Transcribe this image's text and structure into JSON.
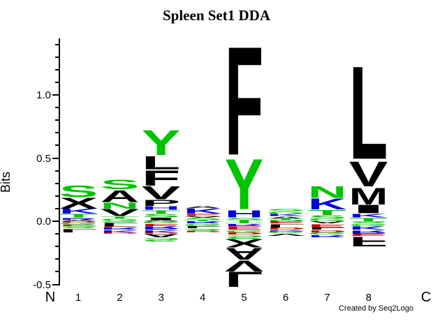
{
  "title": "Spleen Set1 DDA",
  "credit": "Created by Seq2Logo",
  "y_axis": {
    "label": "Bits",
    "ticks": [
      {
        "label": "1.0",
        "bits": 1.0
      },
      {
        "label": "0.5",
        "bits": 0.5
      },
      {
        "label": "0.0",
        "bits": 0.0
      },
      {
        "label": "-0.5",
        "bits": -0.5
      }
    ]
  },
  "x_axis": {
    "left_label": "N",
    "right_label": "C",
    "position_labels": [
      "1",
      "2",
      "3",
      "4",
      "5",
      "6",
      "7",
      "8"
    ]
  },
  "palette": {
    "black": "#000000",
    "green": "#00C400",
    "blue": "#0000DD",
    "red": "#CC0000"
  },
  "chart_data": {
    "type": "sequence_logo",
    "title": "Spleen Set1 DDA",
    "ylabel": "Bits",
    "xlabel_left": "N",
    "xlabel_right": "C",
    "ylim": [
      -0.55,
      1.45
    ],
    "yticks": [
      1.0,
      0.5,
      0.0,
      -0.5
    ],
    "ytick_minor_step": 0.1,
    "grid": false,
    "units": "bits",
    "color_scheme": {
      "black": "hydrophobic",
      "green": "polar",
      "blue": "basic",
      "red": "acidic"
    },
    "positions": [
      {
        "position": 1,
        "above": [
          {
            "aa": "S",
            "color": "green",
            "bits": 0.1
          },
          {
            "aa": "X",
            "color": "black",
            "bits": 0.09
          },
          {
            "aa": "K",
            "color": "blue",
            "bits": 0.04
          },
          {
            "aa": "T",
            "color": "green",
            "bits": 0.03
          },
          {
            "aa": "R",
            "color": "blue",
            "bits": 0.02
          },
          {
            "aa": "A",
            "color": "black",
            "bits": 0.01
          }
        ],
        "below": [
          {
            "aa": "D",
            "color": "red",
            "bits": 0.01
          },
          {
            "aa": "G",
            "color": "green",
            "bits": 0.02
          },
          {
            "aa": "E",
            "color": "red",
            "bits": 0.01
          },
          {
            "aa": "S",
            "color": "green",
            "bits": 0.02
          },
          {
            "aa": "L",
            "color": "black",
            "bits": 0.03
          }
        ]
      },
      {
        "position": 2,
        "above": [
          {
            "aa": "S",
            "color": "green",
            "bits": 0.08
          },
          {
            "aa": "A",
            "color": "black",
            "bits": 0.1
          },
          {
            "aa": "N",
            "color": "green",
            "bits": 0.05
          },
          {
            "aa": "V",
            "color": "black",
            "bits": 0.06
          },
          {
            "aa": "T",
            "color": "green",
            "bits": 0.02
          },
          {
            "aa": "G",
            "color": "green",
            "bits": 0.02
          }
        ],
        "below": [
          {
            "aa": "G",
            "color": "green",
            "bits": 0.01
          },
          {
            "aa": "L",
            "color": "black",
            "bits": 0.03
          },
          {
            "aa": "E",
            "color": "red",
            "bits": 0.01
          },
          {
            "aa": "R",
            "color": "blue",
            "bits": 0.02
          },
          {
            "aa": "K",
            "color": "blue",
            "bits": 0.02
          },
          {
            "aa": "D",
            "color": "red",
            "bits": 0.01
          }
        ]
      },
      {
        "position": 3,
        "above": [
          {
            "aa": "Y",
            "color": "green",
            "bits": 0.21
          },
          {
            "aa": "L",
            "color": "black",
            "bits": 0.11
          },
          {
            "aa": "F",
            "color": "black",
            "bits": 0.13
          },
          {
            "aa": "V",
            "color": "black",
            "bits": 0.11
          },
          {
            "aa": "P",
            "color": "black",
            "bits": 0.05
          },
          {
            "aa": "H",
            "color": "blue",
            "bits": 0.03
          },
          {
            "aa": "T",
            "color": "green",
            "bits": 0.03
          },
          {
            "aa": "S",
            "color": "green",
            "bits": 0.03
          },
          {
            "aa": "I",
            "color": "black",
            "bits": 0.02
          },
          {
            "aa": "A",
            "color": "black",
            "bits": 0.01
          }
        ],
        "below": [
          {
            "aa": "G",
            "color": "green",
            "bits": 0.02
          },
          {
            "aa": "E",
            "color": "red",
            "bits": 0.02
          },
          {
            "aa": "R",
            "color": "blue",
            "bits": 0.03
          },
          {
            "aa": "K",
            "color": "blue",
            "bits": 0.02
          },
          {
            "aa": "D",
            "color": "red",
            "bits": 0.01
          },
          {
            "aa": "A",
            "color": "black",
            "bits": 0.03
          },
          {
            "aa": "S",
            "color": "green",
            "bits": 0.03
          }
        ]
      },
      {
        "position": 4,
        "above": [
          {
            "aa": "A",
            "color": "black",
            "bits": 0.02
          },
          {
            "aa": "K",
            "color": "blue",
            "bits": 0.04
          },
          {
            "aa": "E",
            "color": "red",
            "bits": 0.02
          },
          {
            "aa": "V",
            "color": "black",
            "bits": 0.01
          },
          {
            "aa": "S",
            "color": "green",
            "bits": 0.02
          },
          {
            "aa": "T",
            "color": "green",
            "bits": 0.01
          }
        ],
        "below": [
          {
            "aa": "R",
            "color": "blue",
            "bits": 0.02
          },
          {
            "aa": "G",
            "color": "green",
            "bits": 0.02
          },
          {
            "aa": "L",
            "color": "black",
            "bits": 0.02
          },
          {
            "aa": "S",
            "color": "green",
            "bits": 0.02
          },
          {
            "aa": "D",
            "color": "red",
            "bits": 0.01
          }
        ]
      },
      {
        "position": 5,
        "above": [
          {
            "aa": "F",
            "color": "black",
            "bits": 0.91
          },
          {
            "aa": "Y",
            "color": "green",
            "bits": 0.42
          },
          {
            "aa": "H",
            "color": "blue",
            "bits": 0.06
          },
          {
            "aa": "S",
            "color": "green",
            "bits": 0.02
          },
          {
            "aa": "T",
            "color": "green",
            "bits": 0.01
          }
        ],
        "below": [
          {
            "aa": "T",
            "color": "green",
            "bits": 0.02
          },
          {
            "aa": "R",
            "color": "blue",
            "bits": 0.02
          },
          {
            "aa": "E",
            "color": "red",
            "bits": 0.03
          },
          {
            "aa": "G",
            "color": "green",
            "bits": 0.02
          },
          {
            "aa": "D",
            "color": "red",
            "bits": 0.02
          },
          {
            "aa": "S",
            "color": "green",
            "bits": 0.03
          },
          {
            "aa": "X",
            "color": "black",
            "bits": 0.07
          },
          {
            "aa": "A",
            "color": "black",
            "bits": 0.1
          },
          {
            "aa": "V",
            "color": "black",
            "bits": 0.09
          },
          {
            "aa": "L",
            "color": "black",
            "bits": 0.13
          }
        ]
      },
      {
        "position": 6,
        "above": [
          {
            "aa": "S",
            "color": "green",
            "bits": 0.02
          },
          {
            "aa": "G",
            "color": "green",
            "bits": 0.02
          },
          {
            "aa": "K",
            "color": "blue",
            "bits": 0.02
          },
          {
            "aa": "A",
            "color": "black",
            "bits": 0.02
          },
          {
            "aa": "T",
            "color": "green",
            "bits": 0.01
          },
          {
            "aa": "N",
            "color": "green",
            "bits": 0.01
          }
        ],
        "below": [
          {
            "aa": "E",
            "color": "red",
            "bits": 0.02
          },
          {
            "aa": "L",
            "color": "black",
            "bits": 0.03
          },
          {
            "aa": "D",
            "color": "red",
            "bits": 0.02
          },
          {
            "aa": "R",
            "color": "blue",
            "bits": 0.01
          },
          {
            "aa": "G",
            "color": "green",
            "bits": 0.02
          },
          {
            "aa": "V",
            "color": "black",
            "bits": 0.02
          }
        ]
      },
      {
        "position": 7,
        "above": [
          {
            "aa": "N",
            "color": "green",
            "bits": 0.1
          },
          {
            "aa": "K",
            "color": "blue",
            "bits": 0.09
          },
          {
            "aa": "T",
            "color": "green",
            "bits": 0.04
          },
          {
            "aa": "S",
            "color": "green",
            "bits": 0.03
          },
          {
            "aa": "G",
            "color": "green",
            "bits": 0.02
          }
        ],
        "below": [
          {
            "aa": "A",
            "color": "black",
            "bits": 0.02
          },
          {
            "aa": "E",
            "color": "red",
            "bits": 0.03
          },
          {
            "aa": "L",
            "color": "black",
            "bits": 0.02
          },
          {
            "aa": "D",
            "color": "red",
            "bits": 0.02
          },
          {
            "aa": "G",
            "color": "green",
            "bits": 0.02
          },
          {
            "aa": "R",
            "color": "blue",
            "bits": 0.02
          }
        ]
      },
      {
        "position": 8,
        "above": [
          {
            "aa": "L",
            "color": "black",
            "bits": 0.78
          },
          {
            "aa": "V",
            "color": "black",
            "bits": 0.21
          },
          {
            "aa": "M",
            "color": "black",
            "bits": 0.14
          },
          {
            "aa": "I",
            "color": "black",
            "bits": 0.07
          },
          {
            "aa": "K",
            "color": "blue",
            "bits": 0.03
          },
          {
            "aa": "T",
            "color": "green",
            "bits": 0.03
          }
        ],
        "below": [
          {
            "aa": "S",
            "color": "green",
            "bits": 0.02
          },
          {
            "aa": "G",
            "color": "green",
            "bits": 0.02
          },
          {
            "aa": "K",
            "color": "blue",
            "bits": 0.03
          },
          {
            "aa": "R",
            "color": "blue",
            "bits": 0.03
          },
          {
            "aa": "E",
            "color": "red",
            "bits": 0.02
          },
          {
            "aa": "F",
            "color": "black",
            "bits": 0.08
          }
        ]
      }
    ]
  }
}
